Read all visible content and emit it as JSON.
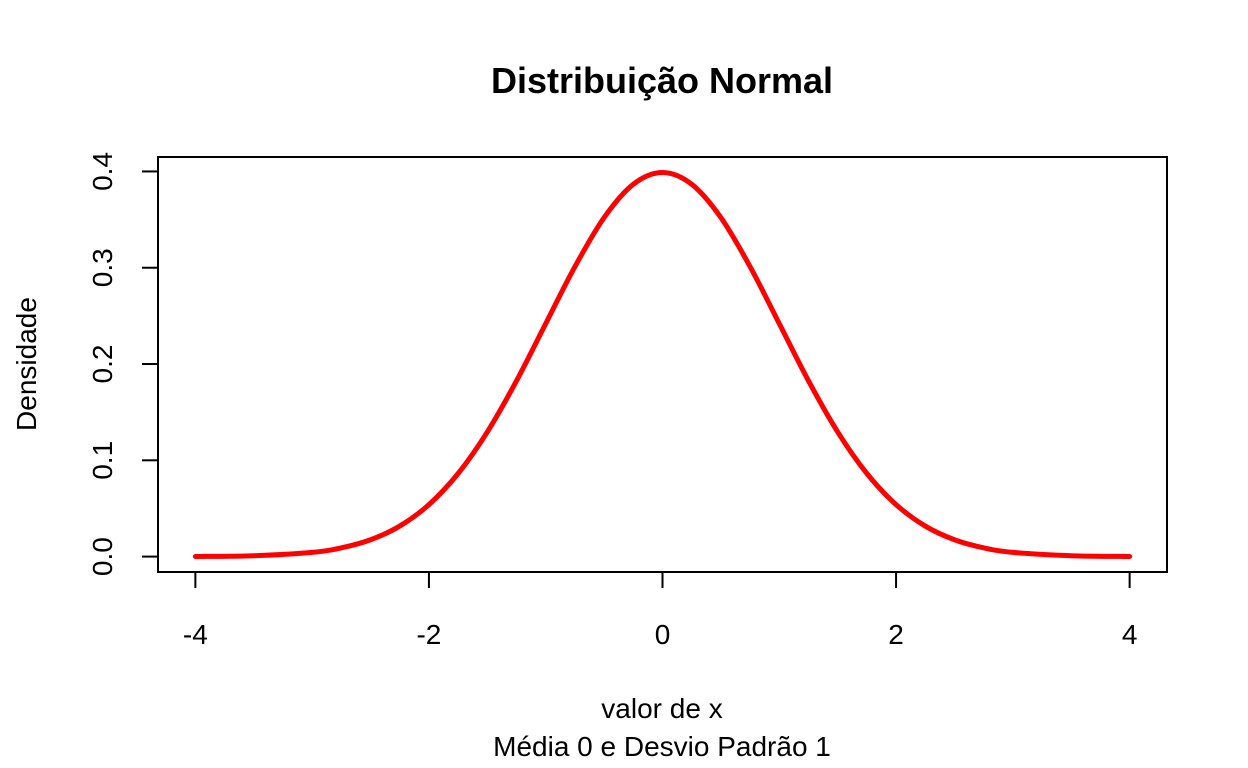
{
  "chart_data": {
    "type": "line",
    "title": "Distribuição Normal",
    "xlabel": "valor de x",
    "subtitle": "Média 0 e Desvio Padrão 1",
    "ylabel": "Densidade",
    "xlim": [
      -4.32,
      4.32
    ],
    "ylim": [
      -0.016,
      0.415
    ],
    "x_ticks": [
      -4,
      -2,
      0,
      2,
      4
    ],
    "x_tick_labels": [
      "-4",
      "-2",
      "0",
      "2",
      "4"
    ],
    "y_ticks": [
      0.0,
      0.1,
      0.2,
      0.3,
      0.4
    ],
    "y_tick_labels": [
      "0.0",
      "0.1",
      "0.2",
      "0.3",
      "0.4"
    ],
    "grid": false,
    "series": [
      {
        "color": "#ff0000",
        "x": [
          -4.0,
          -3.5,
          -3.0,
          -2.75,
          -2.5,
          -2.25,
          -2.0,
          -1.75,
          -1.5,
          -1.25,
          -1.0,
          -0.75,
          -0.5,
          -0.25,
          0.0,
          0.25,
          0.5,
          0.75,
          1.0,
          1.25,
          1.5,
          1.75,
          2.0,
          2.25,
          2.5,
          2.75,
          3.0,
          3.5,
          4.0
        ],
        "y": [
          0.0001,
          0.0009,
          0.0044,
          0.0091,
          0.0175,
          0.0317,
          0.054,
          0.0863,
          0.1295,
          0.1826,
          0.242,
          0.3011,
          0.3521,
          0.3867,
          0.3989,
          0.3867,
          0.3521,
          0.3011,
          0.242,
          0.1826,
          0.1295,
          0.0863,
          0.054,
          0.0317,
          0.0175,
          0.0091,
          0.0044,
          0.0009,
          0.0001
        ]
      }
    ]
  }
}
